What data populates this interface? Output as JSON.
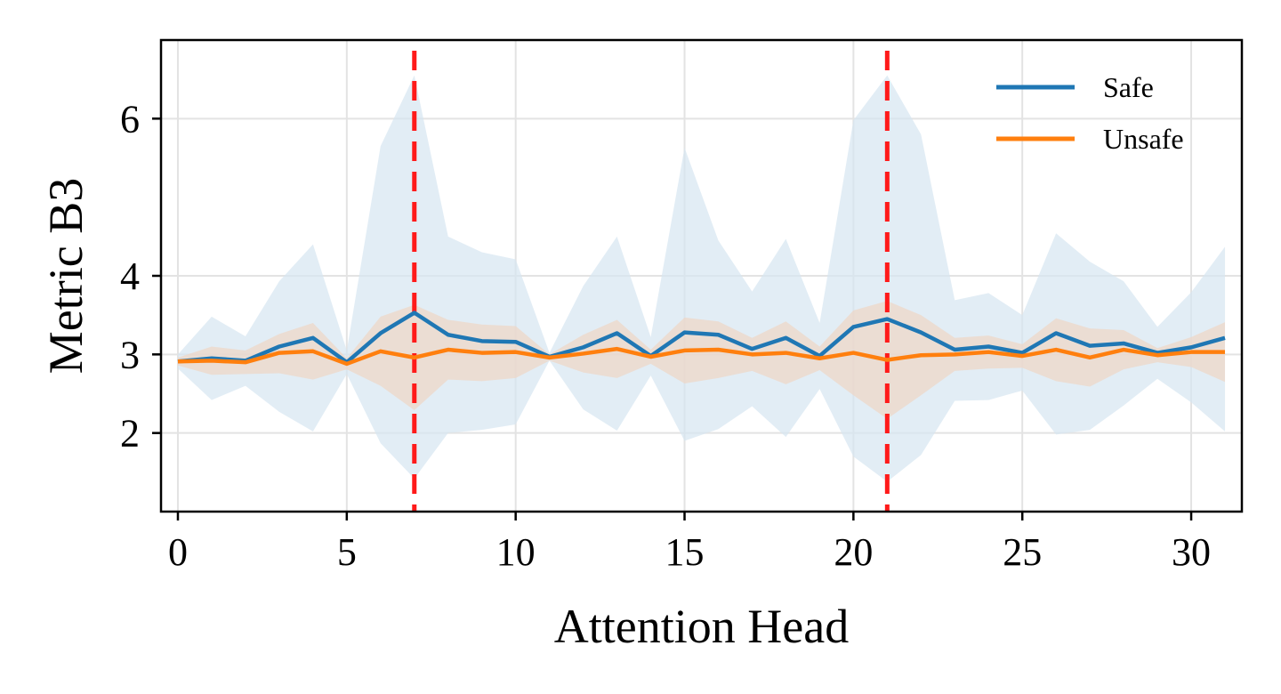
{
  "chart_data": {
    "type": "line",
    "xlabel": "Attention Head",
    "ylabel": "Metric B3",
    "xlim": [
      -0.5,
      31.5
    ],
    "ylim": [
      1.0,
      7.0
    ],
    "xticks": [
      0,
      5,
      10,
      15,
      20,
      25,
      30
    ],
    "yticks": [
      2,
      3,
      4,
      6
    ],
    "grid": true,
    "legend_position": "top-right",
    "x": [
      0,
      1,
      2,
      3,
      4,
      5,
      6,
      7,
      8,
      9,
      10,
      11,
      12,
      13,
      14,
      15,
      16,
      17,
      18,
      19,
      20,
      21,
      22,
      23,
      24,
      25,
      26,
      27,
      28,
      29,
      30,
      31
    ],
    "series": [
      {
        "name": "Safe",
        "color": "#1f77b4",
        "band_color": "#d6e6f1",
        "values": [
          2.91,
          2.95,
          2.92,
          3.1,
          3.21,
          2.9,
          3.27,
          3.53,
          3.25,
          3.17,
          3.16,
          2.97,
          3.09,
          3.27,
          2.98,
          3.28,
          3.25,
          3.07,
          3.21,
          2.98,
          3.35,
          3.45,
          3.28,
          3.06,
          3.1,
          3.02,
          3.27,
          3.11,
          3.14,
          3.02,
          3.09,
          3.21
        ],
        "upper": [
          3.0,
          3.48,
          3.23,
          3.93,
          4.4,
          3.05,
          5.65,
          6.55,
          4.5,
          4.3,
          4.21,
          3.02,
          3.87,
          4.5,
          3.22,
          5.63,
          4.45,
          3.8,
          4.47,
          3.4,
          5.98,
          6.55,
          5.8,
          3.69,
          3.78,
          3.5,
          4.54,
          4.18,
          3.93,
          3.35,
          3.79,
          4.37
        ],
        "lower": [
          2.82,
          2.42,
          2.6,
          2.27,
          2.02,
          2.75,
          1.87,
          1.42,
          2.0,
          2.04,
          2.11,
          2.92,
          2.3,
          2.03,
          2.73,
          1.9,
          2.05,
          2.34,
          1.95,
          2.56,
          1.7,
          1.38,
          1.72,
          2.41,
          2.42,
          2.54,
          1.98,
          2.04,
          2.35,
          2.69,
          2.39,
          2.02
        ]
      },
      {
        "name": "Unsafe",
        "color": "#ff7f0e",
        "band_color": "#efd6c4",
        "values": [
          2.91,
          2.92,
          2.9,
          3.02,
          3.04,
          2.88,
          3.04,
          2.96,
          3.06,
          3.02,
          3.03,
          2.96,
          3.01,
          3.07,
          2.97,
          3.05,
          3.06,
          3.0,
          3.02,
          2.95,
          3.02,
          2.93,
          2.99,
          3.0,
          3.03,
          2.98,
          3.06,
          2.96,
          3.06,
          2.99,
          3.03,
          3.03
        ],
        "upper": [
          2.96,
          3.1,
          3.05,
          3.26,
          3.4,
          2.95,
          3.48,
          3.63,
          3.44,
          3.38,
          3.36,
          3.0,
          3.25,
          3.44,
          3.06,
          3.47,
          3.42,
          3.21,
          3.42,
          3.1,
          3.56,
          3.68,
          3.5,
          3.21,
          3.24,
          3.13,
          3.46,
          3.33,
          3.31,
          3.08,
          3.22,
          3.41
        ],
        "lower": [
          2.86,
          2.74,
          2.75,
          2.76,
          2.68,
          2.81,
          2.6,
          2.29,
          2.68,
          2.66,
          2.7,
          2.92,
          2.77,
          2.7,
          2.88,
          2.63,
          2.7,
          2.79,
          2.62,
          2.8,
          2.48,
          2.18,
          2.48,
          2.79,
          2.82,
          2.83,
          2.66,
          2.59,
          2.81,
          2.9,
          2.84,
          2.65
        ]
      }
    ],
    "vlines": [
      {
        "x": 7,
        "color": "#ff1a1a",
        "style": "dashed"
      },
      {
        "x": 21,
        "color": "#ff1a1a",
        "style": "dashed"
      }
    ]
  }
}
